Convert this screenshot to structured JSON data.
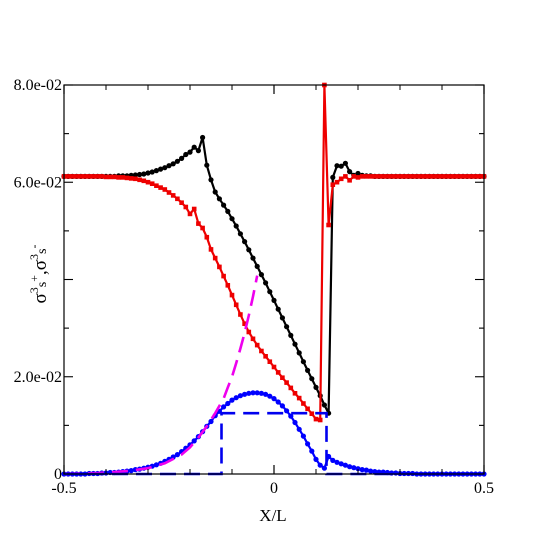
{
  "chart_data": {
    "type": "line",
    "xlabel": "X/L",
    "ylabel_parts": {
      "sym1": "σ",
      "sup1": "3",
      "sub1": "s",
      "sign1": "+",
      "sep": ",",
      "sym2": "σ",
      "sup2": "3",
      "sub2": "s",
      "sign2": "-"
    },
    "xlim": [
      -0.5,
      0.5
    ],
    "ylim": [
      0,
      0.08
    ],
    "x_ticks": [
      -0.5,
      0,
      0.5
    ],
    "x_tick_labels": [
      "-0.5",
      "0",
      "0.5"
    ],
    "y_ticks": [
      0,
      0.02,
      0.06,
      0.08
    ],
    "y_tick_labels": [
      "0",
      "2.0e-02",
      "6.0e-02",
      "8.0e-02"
    ],
    "grid": false,
    "legend": "none",
    "series": [
      {
        "color": "#000000",
        "marker": "circle",
        "style": "solid",
        "x": [
          -0.5,
          -0.49,
          -0.48,
          -0.47,
          -0.46,
          -0.45,
          -0.44,
          -0.43,
          -0.42,
          -0.41,
          -0.4,
          -0.39,
          -0.38,
          -0.37,
          -0.36,
          -0.35,
          -0.34,
          -0.33,
          -0.32,
          -0.31,
          -0.3,
          -0.29,
          -0.28,
          -0.27,
          -0.26,
          -0.25,
          -0.24,
          -0.23,
          -0.22,
          -0.21,
          -0.2,
          -0.19,
          -0.18,
          -0.17,
          -0.16,
          -0.15,
          -0.14,
          -0.13,
          -0.12,
          -0.11,
          -0.1,
          -0.09,
          -0.08,
          -0.07,
          -0.06,
          -0.05,
          -0.04,
          -0.03,
          -0.02,
          -0.01,
          0,
          0.01,
          0.02,
          0.03,
          0.04,
          0.05,
          0.06,
          0.07,
          0.08,
          0.09,
          0.1,
          0.11,
          0.12,
          0.13,
          0.14,
          0.15,
          0.16,
          0.17,
          0.18,
          0.19,
          0.2,
          0.21,
          0.22,
          0.23,
          0.24,
          0.25,
          0.26,
          0.27,
          0.28,
          0.29,
          0.3,
          0.31,
          0.32,
          0.33,
          0.34,
          0.35,
          0.36,
          0.37,
          0.38,
          0.39,
          0.4,
          0.41,
          0.42,
          0.43,
          0.44,
          0.45,
          0.46,
          0.47,
          0.48,
          0.49,
          0.5
        ],
        "y": [
          0.0612,
          0.0612,
          0.0612,
          0.0612,
          0.0612,
          0.0612,
          0.0612,
          0.0612,
          0.0612,
          0.0612,
          0.0612,
          0.0612,
          0.0612,
          0.0613,
          0.0613,
          0.0613,
          0.0614,
          0.0615,
          0.0616,
          0.0617,
          0.0619,
          0.0621,
          0.0624,
          0.0627,
          0.063,
          0.0634,
          0.0638,
          0.0643,
          0.0649,
          0.0657,
          0.0662,
          0.0672,
          0.0665,
          0.0692,
          0.0635,
          0.0605,
          0.058,
          0.0566,
          0.0553,
          0.054,
          0.0525,
          0.051,
          0.0494,
          0.0478,
          0.0461,
          0.0444,
          0.0427,
          0.041,
          0.0393,
          0.0375,
          0.0357,
          0.0339,
          0.0321,
          0.0303,
          0.0285,
          0.0267,
          0.0249,
          0.0231,
          0.0213,
          0.0196,
          0.0178,
          0.0161,
          0.0142,
          0.0125,
          0.061,
          0.0634,
          0.0633,
          0.0639,
          0.0622,
          0.0614,
          0.0618,
          0.0614,
          0.0613,
          0.0613,
          0.0612,
          0.0612,
          0.0612,
          0.0612,
          0.0612,
          0.0612,
          0.0612,
          0.0612,
          0.0612,
          0.0612,
          0.0612,
          0.0612,
          0.0612,
          0.0612,
          0.0612,
          0.0612,
          0.0612,
          0.0612,
          0.0612,
          0.0612,
          0.0612,
          0.0612,
          0.0612,
          0.0612,
          0.0612,
          0.0612,
          0.0612
        ]
      },
      {
        "color": "#ee0000",
        "marker": "square",
        "style": "solid",
        "x": [
          -0.5,
          -0.49,
          -0.48,
          -0.47,
          -0.46,
          -0.45,
          -0.44,
          -0.43,
          -0.42,
          -0.41,
          -0.4,
          -0.39,
          -0.38,
          -0.37,
          -0.36,
          -0.35,
          -0.34,
          -0.33,
          -0.32,
          -0.31,
          -0.3,
          -0.29,
          -0.28,
          -0.27,
          -0.26,
          -0.25,
          -0.24,
          -0.23,
          -0.22,
          -0.21,
          -0.2,
          -0.19,
          -0.18,
          -0.17,
          -0.16,
          -0.15,
          -0.14,
          -0.13,
          -0.12,
          -0.11,
          -0.1,
          -0.09,
          -0.08,
          -0.07,
          -0.06,
          -0.05,
          -0.04,
          -0.03,
          -0.02,
          -0.01,
          0,
          0.01,
          0.02,
          0.03,
          0.04,
          0.05,
          0.06,
          0.07,
          0.08,
          0.09,
          0.1,
          0.11,
          0.12,
          0.13,
          0.14,
          0.15,
          0.16,
          0.17,
          0.18,
          0.19,
          0.2,
          0.21,
          0.22,
          0.23,
          0.24,
          0.25,
          0.26,
          0.27,
          0.28,
          0.29,
          0.3,
          0.31,
          0.32,
          0.33,
          0.34,
          0.35,
          0.36,
          0.37,
          0.38,
          0.39,
          0.4,
          0.41,
          0.42,
          0.43,
          0.44,
          0.45,
          0.46,
          0.47,
          0.48,
          0.49,
          0.5
        ],
        "y": [
          0.0612,
          0.0612,
          0.0612,
          0.0612,
          0.0612,
          0.0612,
          0.0612,
          0.0612,
          0.0612,
          0.0612,
          0.0611,
          0.0611,
          0.0611,
          0.061,
          0.061,
          0.0609,
          0.0608,
          0.0607,
          0.0605,
          0.0603,
          0.06,
          0.0597,
          0.0593,
          0.0589,
          0.0585,
          0.0579,
          0.0573,
          0.0566,
          0.0558,
          0.0549,
          0.0535,
          0.0545,
          0.0515,
          0.0506,
          0.0487,
          0.0462,
          0.0444,
          0.0426,
          0.0407,
          0.0388,
          0.0368,
          0.0348,
          0.0328,
          0.0309,
          0.0292,
          0.0278,
          0.0265,
          0.0253,
          0.0242,
          0.0231,
          0.022,
          0.0209,
          0.0198,
          0.0188,
          0.0177,
          0.0166,
          0.0156,
          0.0145,
          0.0134,
          0.0124,
          0.0113,
          0.0111,
          0.08,
          0.0512,
          0.0595,
          0.06,
          0.0607,
          0.0612,
          0.0604,
          0.0612,
          0.061,
          0.0612,
          0.0612,
          0.0612,
          0.0612,
          0.0612,
          0.0612,
          0.0612,
          0.0612,
          0.0612,
          0.0612,
          0.0612,
          0.0612,
          0.0612,
          0.0612,
          0.0612,
          0.0612,
          0.0612,
          0.0612,
          0.0612,
          0.0612,
          0.0612,
          0.0612,
          0.0612,
          0.0612,
          0.0612,
          0.0612,
          0.0612,
          0.0612,
          0.0612,
          0.0612
        ]
      },
      {
        "color": "#0000ff",
        "marker": "circle",
        "style": "solid",
        "x": [
          -0.5,
          -0.49,
          -0.48,
          -0.47,
          -0.46,
          -0.45,
          -0.44,
          -0.43,
          -0.42,
          -0.41,
          -0.4,
          -0.39,
          -0.38,
          -0.37,
          -0.36,
          -0.35,
          -0.34,
          -0.33,
          -0.32,
          -0.31,
          -0.3,
          -0.29,
          -0.28,
          -0.27,
          -0.26,
          -0.25,
          -0.24,
          -0.23,
          -0.22,
          -0.21,
          -0.2,
          -0.19,
          -0.18,
          -0.17,
          -0.16,
          -0.15,
          -0.14,
          -0.13,
          -0.12,
          -0.11,
          -0.1,
          -0.09,
          -0.08,
          -0.07,
          -0.06,
          -0.05,
          -0.04,
          -0.03,
          -0.02,
          -0.01,
          0,
          0.01,
          0.02,
          0.03,
          0.04,
          0.05,
          0.06,
          0.07,
          0.08,
          0.09,
          0.1,
          0.11,
          0.12,
          0.13,
          0.14,
          0.15,
          0.16,
          0.17,
          0.18,
          0.19,
          0.2,
          0.21,
          0.22,
          0.23,
          0.24,
          0.25,
          0.26,
          0.27,
          0.28,
          0.29,
          0.3,
          0.31,
          0.32,
          0.33,
          0.34,
          0.35,
          0.36,
          0.37,
          0.38,
          0.39,
          0.4,
          0.41,
          0.42,
          0.43,
          0.44,
          0.45,
          0.46,
          0.47,
          0.48,
          0.49,
          0.5
        ],
        "y": [
          0,
          0,
          0,
          0,
          0,
          0,
          0.0001,
          0.0001,
          0.0001,
          0.0002,
          0.0002,
          0.0003,
          0.0003,
          0.0004,
          0.0005,
          0.0006,
          0.0007,
          0.0009,
          0.001,
          0.0012,
          0.0014,
          0.0016,
          0.0019,
          0.0022,
          0.0026,
          0.003,
          0.0035,
          0.004,
          0.0046,
          0.0053,
          0.006,
          0.0068,
          0.0077,
          0.0087,
          0.0098,
          0.0108,
          0.012,
          0.0129,
          0.0138,
          0.0145,
          0.0152,
          0.0157,
          0.0161,
          0.0164,
          0.0166,
          0.0167,
          0.0167,
          0.0166,
          0.0164,
          0.016,
          0.0155,
          0.0148,
          0.014,
          0.013,
          0.0119,
          0.0106,
          0.0092,
          0.0078,
          0.0062,
          0.0047,
          0.003,
          0.0018,
          0.0012,
          0.0036,
          0.0028,
          0.0024,
          0.0021,
          0.0018,
          0.0015,
          0.0013,
          0.0011,
          0.0009,
          0.0008,
          0.0006,
          0.0005,
          0.0004,
          0.0004,
          0.0003,
          0.0002,
          0.0002,
          0.0001,
          0.0001,
          0.0001,
          0.0001,
          0,
          0,
          0,
          0,
          0,
          0,
          0,
          0,
          0,
          0,
          0,
          0,
          0,
          0,
          0,
          0,
          0
        ]
      },
      {
        "color": "#ee00ee",
        "marker": "none",
        "style": "dashed",
        "x": [
          -0.5,
          -0.46,
          -0.42,
          -0.38,
          -0.34,
          -0.3,
          -0.26,
          -0.22,
          -0.2,
          -0.18,
          -0.16,
          -0.14,
          -0.12,
          -0.11,
          -0.1,
          -0.09,
          -0.08,
          -0.07,
          -0.06,
          -0.05,
          -0.04
        ],
        "y": [
          0,
          0.0001,
          0.0002,
          0.0004,
          0.0007,
          0.0012,
          0.0022,
          0.004,
          0.0055,
          0.0075,
          0.0098,
          0.0125,
          0.0155,
          0.0178,
          0.02,
          0.0228,
          0.0258,
          0.029,
          0.0326,
          0.0365,
          0.0408
        ]
      },
      {
        "color": "#0000ee",
        "marker": "none",
        "style": "dashed",
        "x": [
          -0.5,
          -0.125,
          -0.125,
          0.125,
          0.125,
          0.5
        ],
        "y": [
          0,
          0,
          0.0125,
          0.0125,
          0,
          0
        ]
      }
    ]
  }
}
